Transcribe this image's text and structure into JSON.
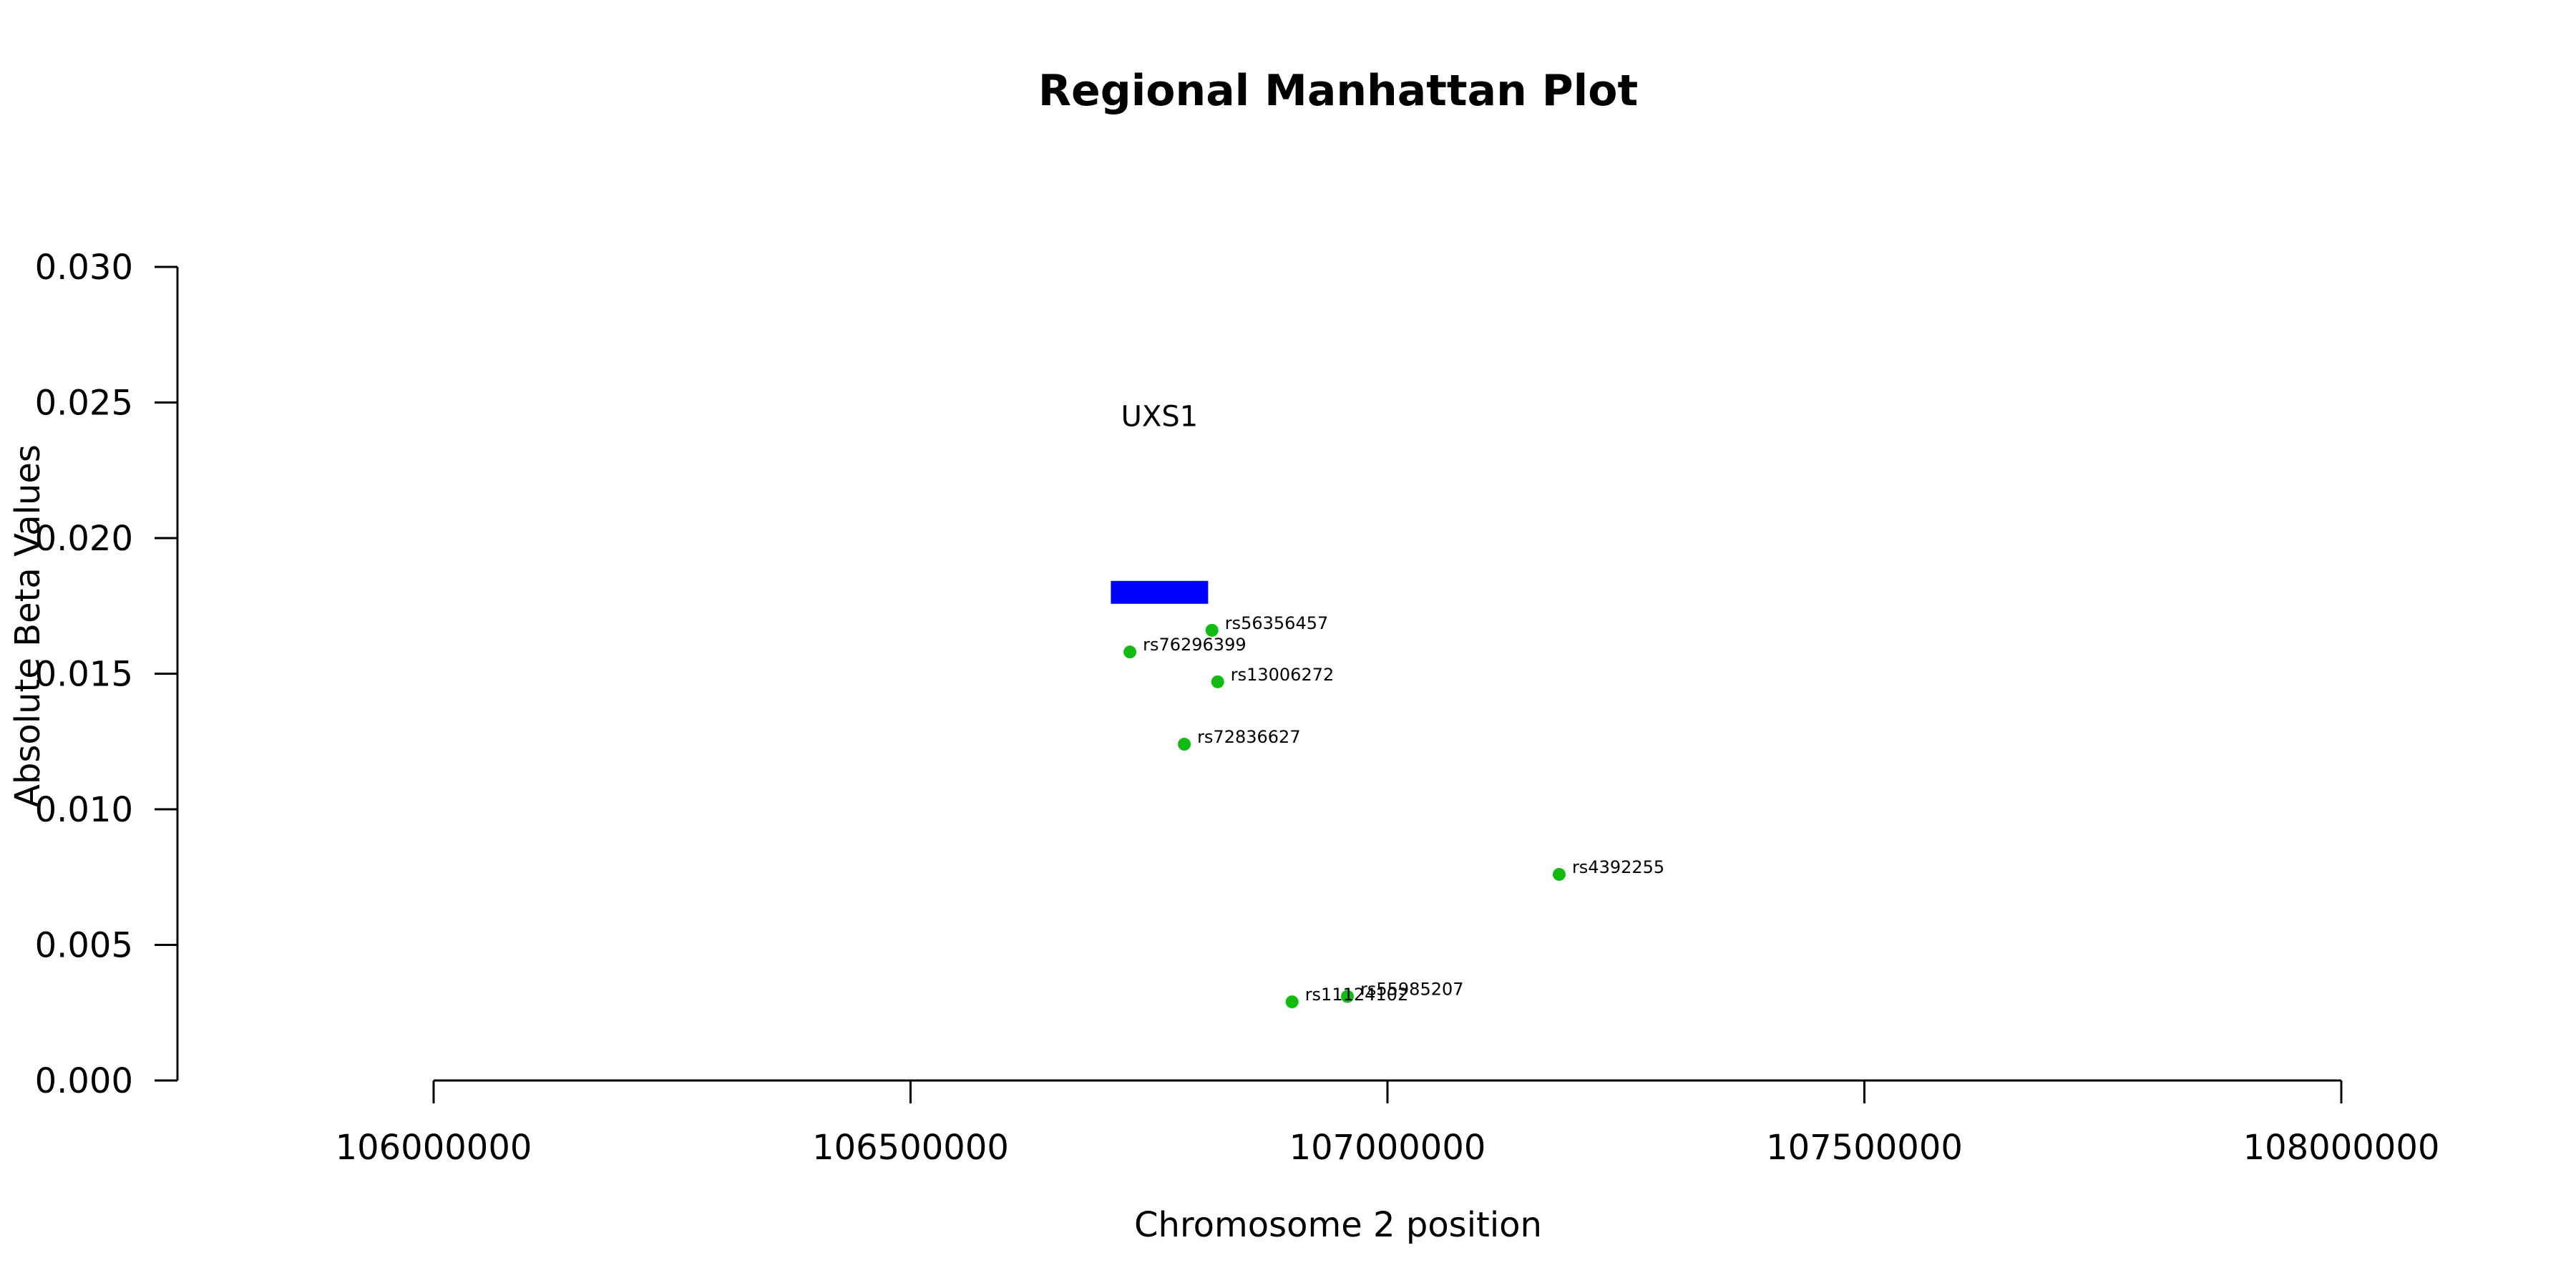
{
  "chart_data": {
    "type": "scatter",
    "title": "Regional Manhattan Plot",
    "xlabel": "Chromosome 2 position",
    "ylabel": "Absolute Beta Values",
    "xlim": [
      106000000,
      108000000
    ],
    "ylim": [
      0,
      0.03
    ],
    "x_ticks": [
      106000000,
      106500000,
      107000000,
      107500000,
      108000000
    ],
    "x_tick_labels": [
      "106000000",
      "106500000",
      "107000000",
      "107500000",
      "108000000"
    ],
    "y_ticks": [
      0,
      0.005,
      0.01,
      0.015,
      0.02,
      0.025,
      0.03
    ],
    "y_tick_labels": [
      "0.000",
      "0.005",
      "0.010",
      "0.015",
      "0.020",
      "0.025",
      "0.030"
    ],
    "grid": false,
    "point_color": "#11bb11",
    "points": [
      {
        "label": "rs56356457",
        "x": 106816000,
        "y": 0.0166
      },
      {
        "label": "rs76296399",
        "x": 106730000,
        "y": 0.0158
      },
      {
        "label": "rs13006272",
        "x": 106822000,
        "y": 0.0147
      },
      {
        "label": "rs72836627",
        "x": 106787000,
        "y": 0.0124
      },
      {
        "label": "rs4392255",
        "x": 107180000,
        "y": 0.0076
      },
      {
        "label": "rs55985207",
        "x": 106958000,
        "y": 0.0031
      },
      {
        "label": "rs11124102",
        "x": 106900000,
        "y": 0.0029
      }
    ],
    "genes": [
      {
        "name": "UXS1",
        "start": 106710000,
        "end": 106812000,
        "y": 0.018,
        "color": "#0000ff",
        "label_y": 0.0245
      }
    ]
  }
}
